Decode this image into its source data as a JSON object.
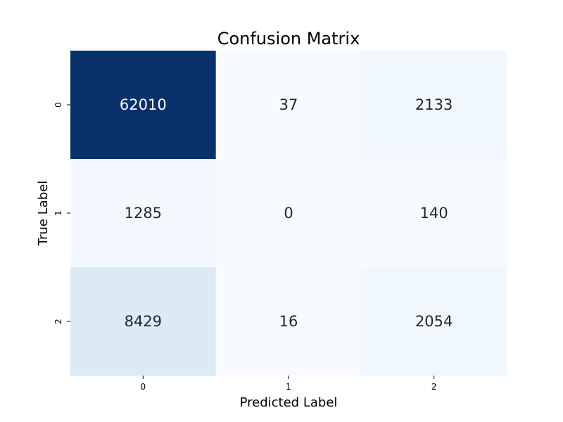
{
  "chart_data": {
    "type": "heatmap",
    "title": "Confusion Matrix",
    "xlabel": "Predicted Label",
    "ylabel": "True Label",
    "x_categories": [
      "0",
      "1",
      "2"
    ],
    "y_categories": [
      "0",
      "1",
      "2"
    ],
    "values": [
      [
        62010,
        37,
        2133
      ],
      [
        1285,
        0,
        140
      ],
      [
        8429,
        16,
        2054
      ]
    ],
    "colormap": "Blues",
    "colorbar": false,
    "annotations": true,
    "grid": false
  }
}
